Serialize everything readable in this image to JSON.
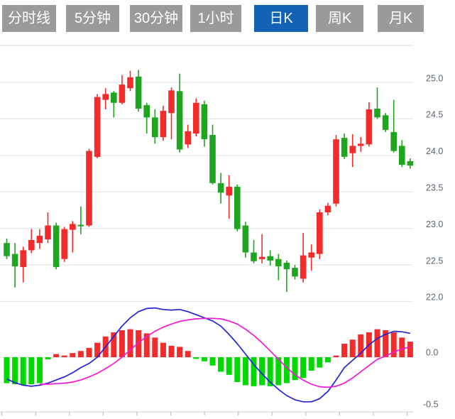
{
  "toolbar": {
    "tabs": [
      {
        "label": "分时线",
        "active": false
      },
      {
        "label": "5分钟",
        "active": false
      },
      {
        "label": "30分钟",
        "active": false
      },
      {
        "label": "1小时",
        "active": false
      },
      {
        "label": "日K",
        "active": true
      },
      {
        "label": "周K",
        "active": false
      },
      {
        "label": "月K",
        "active": false
      }
    ],
    "active_bg": "#1362b6",
    "inactive_bg": "#9a9a9a"
  },
  "chart_data": {
    "type": "candlestick+macd",
    "colors": {
      "up": "#f22b2b",
      "down": "#1fa51f",
      "macd_up": "#f22b2b",
      "macd_down": "#00d800",
      "dif_line": "#2323d8",
      "dea_line": "#f518d2",
      "grid": "#e8e8e8",
      "axis_label": "#5b6570"
    },
    "main_panel": {
      "y_ticks": [
        "25.0",
        "24.5",
        "24.0",
        "23.5",
        "23.0",
        "22.5",
        "22.0"
      ],
      "ohlc_format": [
        "open",
        "high",
        "low",
        "close"
      ],
      "candles": [
        [
          22.8,
          22.86,
          22.58,
          22.62
        ],
        [
          22.65,
          22.8,
          22.19,
          22.48
        ],
        [
          22.47,
          22.75,
          22.26,
          22.7
        ],
        [
          22.7,
          22.99,
          22.66,
          22.84
        ],
        [
          22.8,
          22.99,
          22.72,
          22.9
        ],
        [
          22.85,
          23.22,
          22.8,
          23.04
        ],
        [
          23.04,
          23.08,
          22.44,
          22.47
        ],
        [
          22.58,
          23.02,
          22.54,
          22.99
        ],
        [
          22.98,
          23.1,
          22.67,
          23.06
        ],
        [
          23.05,
          23.3,
          22.92,
          23.03
        ],
        [
          23.04,
          24.09,
          23.02,
          24.06
        ],
        [
          23.98,
          24.84,
          23.96,
          24.8
        ],
        [
          24.76,
          24.92,
          24.63,
          24.84
        ],
        [
          24.86,
          24.88,
          24.52,
          24.72
        ],
        [
          24.72,
          25.1,
          24.7,
          24.97
        ],
        [
          24.92,
          25.16,
          24.88,
          25.07
        ],
        [
          25.08,
          25.17,
          24.6,
          24.64
        ],
        [
          24.69,
          24.72,
          24.3,
          24.52
        ],
        [
          24.52,
          24.63,
          24.16,
          24.25
        ],
        [
          24.25,
          24.68,
          24.2,
          24.61
        ],
        [
          24.58,
          24.93,
          24.22,
          24.89
        ],
        [
          24.88,
          25.12,
          24.04,
          24.08
        ],
        [
          24.15,
          24.42,
          24.1,
          24.33
        ],
        [
          24.3,
          24.78,
          24.26,
          24.72
        ],
        [
          24.7,
          24.75,
          24.12,
          24.22
        ],
        [
          24.28,
          24.42,
          23.6,
          23.62
        ],
        [
          23.62,
          23.76,
          23.34,
          23.49
        ],
        [
          23.45,
          23.73,
          23.13,
          23.57
        ],
        [
          23.57,
          23.6,
          22.96,
          22.99
        ],
        [
          23.04,
          23.09,
          22.6,
          22.67
        ],
        [
          22.67,
          22.84,
          22.52,
          22.55
        ],
        [
          22.58,
          22.92,
          22.52,
          22.61
        ],
        [
          22.62,
          22.7,
          22.49,
          22.56
        ],
        [
          22.58,
          22.65,
          22.29,
          22.48
        ],
        [
          22.53,
          22.56,
          22.13,
          22.44
        ],
        [
          22.46,
          22.5,
          22.3,
          22.34
        ],
        [
          22.31,
          22.94,
          22.26,
          22.63
        ],
        [
          22.6,
          22.78,
          22.42,
          22.67
        ],
        [
          22.65,
          23.26,
          22.58,
          23.22
        ],
        [
          23.22,
          23.35,
          23.18,
          23.31
        ],
        [
          23.34,
          24.28,
          23.3,
          24.22
        ],
        [
          24.24,
          24.3,
          23.95,
          23.98
        ],
        [
          24.03,
          24.29,
          23.84,
          24.13
        ],
        [
          24.13,
          24.25,
          24.05,
          24.16
        ],
        [
          24.15,
          24.73,
          24.12,
          24.63
        ],
        [
          24.64,
          24.93,
          24.5,
          24.52
        ],
        [
          24.55,
          24.58,
          24.32,
          24.35
        ],
        [
          24.32,
          24.76,
          24.04,
          24.06
        ],
        [
          24.13,
          24.21,
          23.84,
          23.87
        ],
        [
          23.92,
          23.96,
          23.82,
          23.86
        ]
      ]
    },
    "macd_panel": {
      "y_ticks": [
        {
          "label": "0.0",
          "value": 0.0
        },
        {
          "label": "-0.5",
          "value": -0.5
        }
      ],
      "histogram": [
        -0.25,
        -0.26,
        -0.27,
        -0.26,
        -0.25,
        -0.02,
        0.03,
        0.01,
        0.04,
        0.06,
        0.09,
        0.14,
        0.2,
        0.24,
        0.26,
        0.27,
        0.26,
        0.23,
        0.19,
        0.14,
        0.11,
        0.1,
        0.06,
        -0.01,
        -0.04,
        -0.08,
        -0.14,
        -0.17,
        -0.24,
        -0.27,
        -0.28,
        -0.27,
        -0.28,
        -0.27,
        -0.25,
        -0.22,
        -0.2,
        -0.13,
        -0.1,
        -0.05,
        0.01,
        0.13,
        0.17,
        0.22,
        0.24,
        0.27,
        0.26,
        0.24,
        0.19,
        0.15
      ],
      "dif": [
        -0.21,
        -0.245,
        -0.27,
        -0.28,
        -0.27,
        -0.25,
        -0.22,
        -0.19,
        -0.15,
        -0.1,
        -0.06,
        0.0,
        0.1,
        0.2,
        0.3,
        0.38,
        0.44,
        0.47,
        0.475,
        0.46,
        0.455,
        0.46,
        0.44,
        0.41,
        0.38,
        0.35,
        0.3,
        0.22,
        0.13,
        0.03,
        -0.07,
        -0.16,
        -0.24,
        -0.31,
        -0.37,
        -0.41,
        -0.43,
        -0.43,
        -0.4,
        -0.33,
        -0.22,
        -0.1,
        -0.03,
        0.04,
        0.12,
        0.18,
        0.22,
        0.25,
        0.245,
        0.23
      ],
      "dea": [
        null,
        null,
        null,
        null,
        -0.26,
        -0.26,
        -0.255,
        -0.25,
        -0.24,
        -0.22,
        -0.19,
        -0.155,
        -0.11,
        -0.06,
        0.0,
        0.07,
        0.14,
        0.2,
        0.25,
        0.29,
        0.32,
        0.345,
        0.36,
        0.37,
        0.375,
        0.375,
        0.37,
        0.35,
        0.32,
        0.27,
        0.21,
        0.14,
        0.06,
        -0.02,
        -0.1,
        -0.17,
        -0.22,
        -0.26,
        -0.285,
        -0.29,
        -0.28,
        -0.25,
        -0.2,
        -0.14,
        -0.08,
        -0.02,
        0.01,
        0.05,
        0.08,
        0.1
      ]
    }
  }
}
